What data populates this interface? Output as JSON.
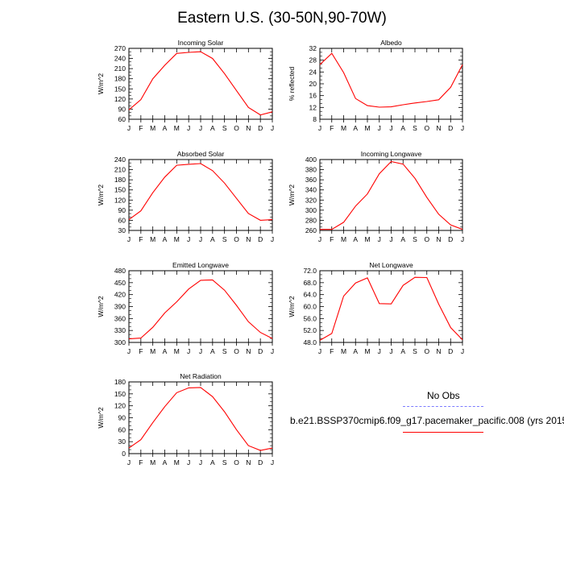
{
  "page_title": "Eastern U.S. (30-50N,90-70W)",
  "months": [
    "J",
    "F",
    "M",
    "A",
    "M",
    "J",
    "J",
    "A",
    "S",
    "O",
    "N",
    "D",
    "J"
  ],
  "colors": {
    "model": "#ff0000",
    "obs": "#7b7bff",
    "axis": "#000000"
  },
  "legend": {
    "obs_label": "No Obs",
    "model_label": "b.e21.BSSP370cmip6.f09_g17.pacemaker_pacific.008 (yrs 2015"
  },
  "chart_data": [
    {
      "type": "line",
      "title": "Incoming Solar",
      "ylabel": "W/m^2",
      "ylim": [
        60,
        270
      ],
      "yticks": [
        "60",
        "90",
        "120",
        "150",
        "180",
        "210",
        "240",
        "270"
      ],
      "series": [
        {
          "values": [
            88,
            118,
            180,
            220,
            255,
            258,
            260,
            240,
            195,
            145,
            95,
            73,
            82
          ]
        }
      ]
    },
    {
      "type": "line",
      "title": "Albedo",
      "ylabel": "% reflected",
      "ylim": [
        8,
        32
      ],
      "yticks": [
        "8",
        "12",
        "16",
        "20",
        "24",
        "28",
        "32"
      ],
      "series": [
        {
          "values": [
            26.5,
            30.3,
            23.8,
            15.0,
            12.6,
            12.1,
            12.2,
            12.9,
            13.5,
            14.0,
            14.6,
            18.8,
            26.5
          ]
        }
      ]
    },
    {
      "type": "line",
      "title": "Absorbed Solar",
      "ylabel": "W/m^2",
      "ylim": [
        30,
        240
      ],
      "yticks": [
        "30",
        "60",
        "90",
        "120",
        "150",
        "180",
        "210",
        "240"
      ],
      "series": [
        {
          "values": [
            62,
            88,
            142,
            188,
            223,
            226,
            228,
            207,
            170,
            125,
            80,
            60,
            62
          ]
        }
      ]
    },
    {
      "type": "line",
      "title": "Incoming Longwave",
      "ylabel": "W/m^2",
      "ylim": [
        260,
        400
      ],
      "yticks": [
        "260",
        "280",
        "300",
        "320",
        "340",
        "360",
        "380",
        "400"
      ],
      "series": [
        {
          "values": [
            262,
            262,
            276,
            308,
            332,
            372,
            396,
            391,
            363,
            325,
            292,
            271,
            262
          ]
        }
      ]
    },
    {
      "type": "line",
      "title": "Emitted Longwave",
      "ylabel": "W/m^2",
      "ylim": [
        300,
        480
      ],
      "yticks": [
        "300",
        "330",
        "360",
        "390",
        "420",
        "450",
        "480"
      ],
      "series": [
        {
          "values": [
            309,
            311,
            338,
            374,
            402,
            434,
            456,
            457,
            431,
            393,
            352,
            325,
            310
          ]
        }
      ]
    },
    {
      "type": "line",
      "title": "Net Longwave",
      "ylabel": "W/m^2",
      "ylim": [
        48,
        72
      ],
      "yticks": [
        "48.0",
        "52.0",
        "56.0",
        "60.0",
        "64.0",
        "68.0",
        "72.0"
      ],
      "series": [
        {
          "values": [
            48.7,
            51.0,
            63.5,
            67.9,
            69.6,
            61.0,
            60.9,
            67.1,
            69.8,
            69.7,
            60.8,
            53.0,
            48.9
          ]
        }
      ]
    },
    {
      "type": "line",
      "title": "Net Radiation",
      "ylabel": "W/m^2",
      "ylim": [
        0,
        180
      ],
      "yticks": [
        "0",
        "30",
        "60",
        "90",
        "120",
        "150",
        "180"
      ],
      "series": [
        {
          "values": [
            14,
            35,
            78,
            118,
            153,
            165,
            166,
            143,
            105,
            60,
            20,
            8,
            14
          ]
        }
      ]
    }
  ]
}
